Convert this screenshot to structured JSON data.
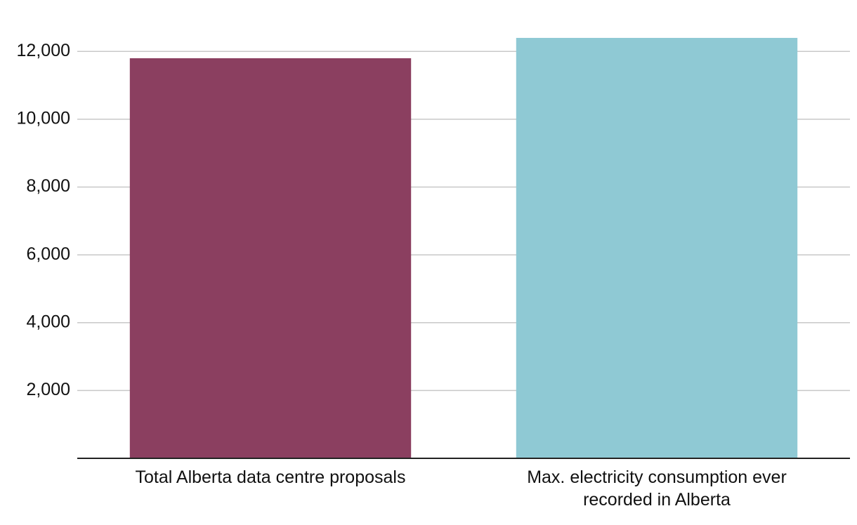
{
  "chart_data": {
    "type": "bar",
    "categories": [
      "Total Alberta data centre proposals",
      "Max. electricity consumption ever recorded in Alberta"
    ],
    "values": [
      11800,
      12400
    ],
    "colors": [
      "#8b3f60",
      "#8fc9d4"
    ],
    "ylim": [
      0,
      13000
    ],
    "yticks": [
      {
        "value": 2000,
        "label": "2,000"
      },
      {
        "value": 4000,
        "label": "4,000"
      },
      {
        "value": 6000,
        "label": "6,000"
      },
      {
        "value": 8000,
        "label": "8,000"
      },
      {
        "value": 10000,
        "label": "10,000"
      },
      {
        "value": 12000,
        "label": "12,000"
      }
    ],
    "grid": true
  }
}
